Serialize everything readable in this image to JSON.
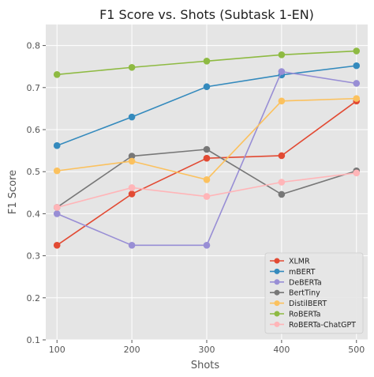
{
  "chart_data": {
    "type": "line",
    "title": "F1 Score vs. Shots (Subtask 1-EN)",
    "xlabel": "Shots",
    "ylabel": "F1 Score",
    "x": [
      100,
      200,
      300,
      400,
      500
    ],
    "xlim": [
      85,
      515
    ],
    "ylim": [
      0.1,
      0.85
    ],
    "yticks": [
      0.1,
      0.2,
      0.3,
      0.4,
      0.5,
      0.6,
      0.7,
      0.8
    ],
    "yticks_labels": [
      "0.1",
      "0.2",
      "0.3",
      "0.4",
      "0.5",
      "0.6",
      "0.7",
      "0.8"
    ],
    "xticks_labels": [
      "100",
      "200",
      "300",
      "400",
      "500"
    ],
    "grid": true,
    "background": "#e5e5e5",
    "legend_position": "lower-right",
    "series": [
      {
        "name": "XLMR",
        "color": "#E24A33",
        "values": [
          0.325,
          0.447,
          0.532,
          0.538,
          0.668
        ]
      },
      {
        "name": "mBERT",
        "color": "#348ABD",
        "values": [
          0.562,
          0.63,
          0.702,
          0.73,
          0.752
        ]
      },
      {
        "name": "DeBERTa",
        "color": "#988ED5",
        "values": [
          0.4,
          0.325,
          0.325,
          0.738,
          0.71
        ]
      },
      {
        "name": "BertTiny",
        "color": "#777777",
        "values": [
          0.415,
          0.537,
          0.553,
          0.446,
          0.502
        ]
      },
      {
        "name": "DistilBERT",
        "color": "#FBC15E",
        "values": [
          0.502,
          0.525,
          0.481,
          0.668,
          0.674
        ]
      },
      {
        "name": "RoBERTa",
        "color": "#8EBA42",
        "values": [
          0.731,
          0.748,
          0.763,
          0.778,
          0.787
        ]
      },
      {
        "name": "RoBERTa-ChatGPT",
        "color": "#FFB5B8",
        "values": [
          0.415,
          0.462,
          0.441,
          0.475,
          0.497
        ]
      }
    ]
  }
}
